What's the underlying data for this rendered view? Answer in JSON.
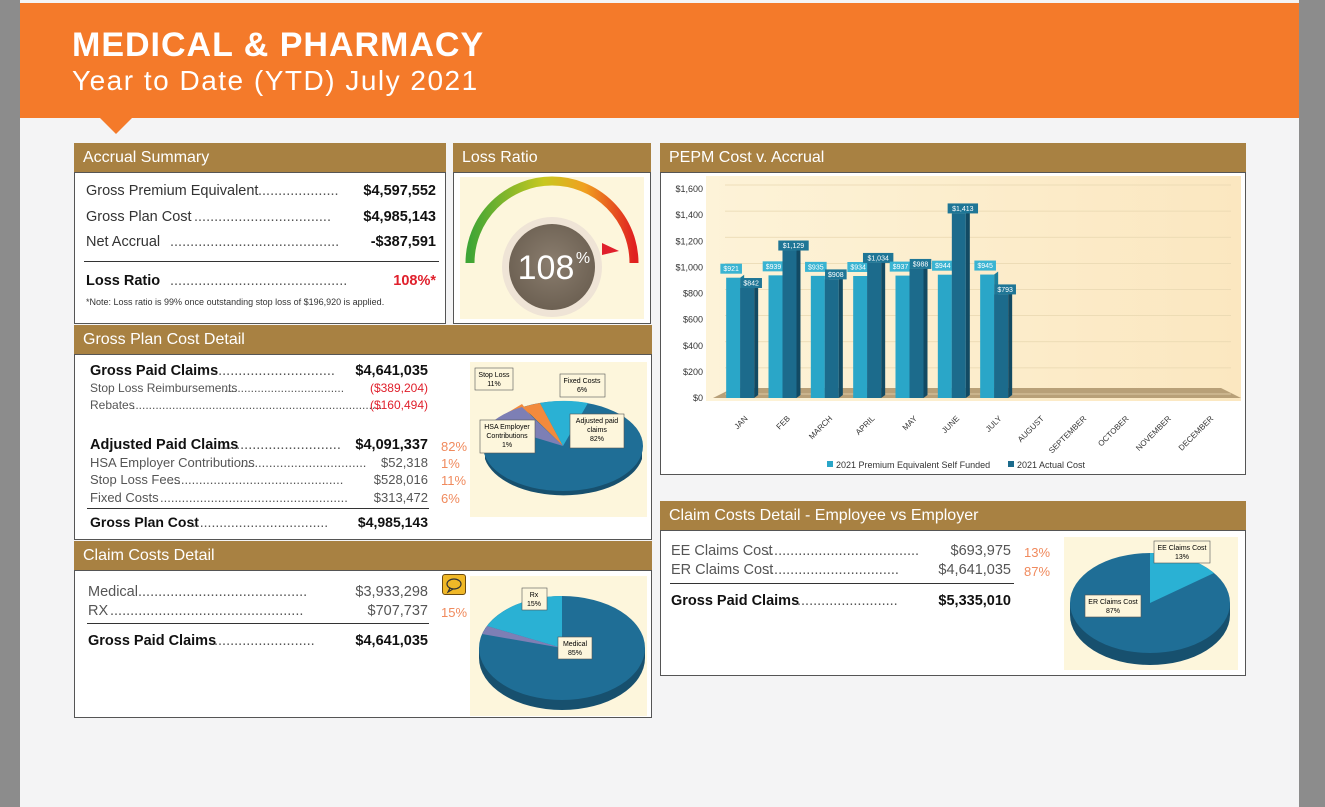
{
  "header": {
    "title": "MEDICAL & PHARMACY",
    "subtitle": "Year to Date (YTD) July 2021"
  },
  "accrual_summary": {
    "title": "Accrual Summary",
    "rows": [
      {
        "label": "Gross Premium Equivalent",
        "value": "$4,597,552"
      },
      {
        "label": "Gross Plan Cost",
        "value": "$4,985,143"
      },
      {
        "label": "Net Accrual",
        "value": "-$387,591"
      }
    ],
    "loss_ratio_label": "Loss Ratio",
    "loss_ratio_value": "108%*",
    "note": "*Note: Loss ratio is 99% once outstanding stop loss of $196,920 is applied."
  },
  "loss_ratio": {
    "title": "Loss Ratio",
    "gauge_value": "108",
    "gauge_unit": "%"
  },
  "gross_plan_cost_detail": {
    "title": "Gross Plan Cost Detail",
    "gross_paid_claims": {
      "label": "Gross Paid Claims",
      "value": "$4,641,035"
    },
    "stop_loss_reimb": {
      "label": "Stop Loss Reimbursements",
      "value": "($389,204)"
    },
    "rebates": {
      "label": "Rebates",
      "value": "($160,494)"
    },
    "adjusted_paid_claims": {
      "label": "Adjusted Paid Claims",
      "value": "$4,091,337",
      "pct": "82%"
    },
    "hsa": {
      "label": "HSA Employer Contributions",
      "value": "$52,318",
      "pct": "1%"
    },
    "stop_loss_fees": {
      "label": "Stop Loss Fees",
      "value": "$528,016",
      "pct": "11%"
    },
    "fixed_costs": {
      "label": "Fixed Costs",
      "value": "$313,472",
      "pct": "6%"
    },
    "gross_plan_cost": {
      "label": "Gross Plan Cost",
      "value": "$4,985,143"
    },
    "pie_labels": {
      "stop_loss": [
        "Stop Loss",
        "11%"
      ],
      "fixed_costs": [
        "Fixed Costs",
        "6%"
      ],
      "hsa": [
        "HSA Employer",
        "Contributions",
        "1%"
      ],
      "adjusted": [
        "Adjusted paid",
        "claims",
        "82%"
      ]
    }
  },
  "claim_costs_detail": {
    "title": "Claim Costs Detail",
    "medical": {
      "label": "Medical",
      "value": "$3,933,298"
    },
    "rx": {
      "label": "RX",
      "value": "$707,737",
      "pct": "15%"
    },
    "gross_paid_claims": {
      "label": "Gross Paid Claims",
      "value": "$4,641,035"
    },
    "pie_labels": {
      "rx": [
        "Rx",
        "15%"
      ],
      "medical": [
        "Medical",
        "85%"
      ]
    }
  },
  "pepm": {
    "title": "PEPM Cost v. Accrual",
    "legend": [
      "2021 Premium Equivalent Self Funded",
      "2021 Actual Cost"
    ]
  },
  "ee_er": {
    "title": "Claim Costs Detail - Employee vs Employer",
    "ee": {
      "label": "EE Claims Cost",
      "value": "$693,975",
      "pct": "13%"
    },
    "er": {
      "label": "ER Claims Cost",
      "value": "$4,641,035",
      "pct": "87%"
    },
    "total": {
      "label": "Gross Paid Claims",
      "value": "$5,335,010"
    },
    "pie_labels": {
      "ee": [
        "EE Claims Cost",
        "13%"
      ],
      "er": [
        "ER Claims Cost",
        "87%"
      ]
    }
  },
  "colors": {
    "orange": "#f47a2a",
    "gold": "#a88142",
    "teal_light": "#2aa6c8",
    "teal_dark": "#1c6b8c",
    "pct": "#f08a5d"
  },
  "chart_data": {
    "type": "bar",
    "title": "PEPM Cost v. Accrual",
    "categories": [
      "JAN",
      "FEB",
      "MARCH",
      "APRIL",
      "MAY",
      "JUNE",
      "JULY",
      "AUGUST",
      "SEPTEMBER",
      "OCTOBER",
      "NOVEMBER",
      "DECEMBER"
    ],
    "series": [
      {
        "name": "2021 Premium Equivalent Self Funded",
        "values": [
          921,
          939,
          935,
          934,
          937,
          944,
          945,
          null,
          null,
          null,
          null,
          null
        ],
        "labels": [
          "$921",
          "$939",
          "$935",
          "$934",
          "$937",
          "$944",
          "$945",
          "",
          "",
          "",
          "",
          ""
        ]
      },
      {
        "name": "2021 Actual Cost",
        "values": [
          842,
          1129,
          908,
          1034,
          988,
          1413,
          793,
          null,
          null,
          null,
          null,
          null
        ],
        "labels": [
          "$842",
          "$1,129",
          "$908",
          "$1,034",
          "$988",
          "$1,413",
          "$793",
          "",
          "",
          "",
          "",
          ""
        ]
      }
    ],
    "y_ticks": [
      "$0",
      "$200",
      "$400",
      "$600",
      "$800",
      "$1,000",
      "$1,200",
      "$1,400",
      "$1,600"
    ],
    "ylim": [
      0,
      1600
    ],
    "legend_position": "bottom"
  }
}
